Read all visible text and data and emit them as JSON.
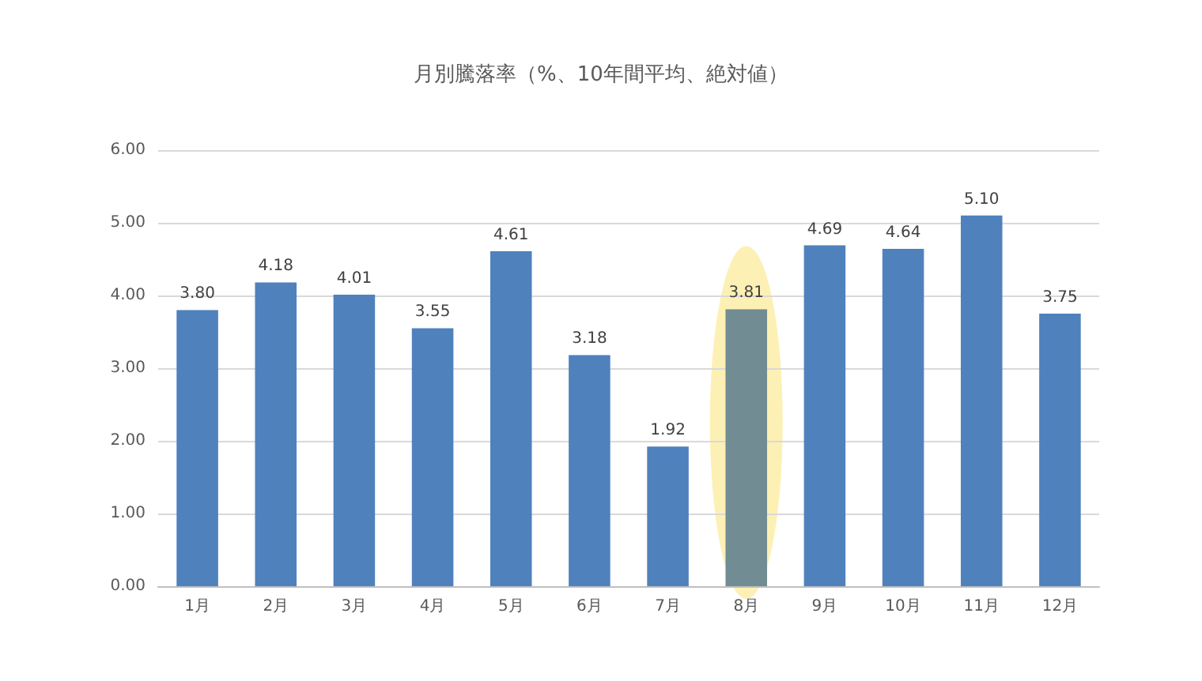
{
  "chart_data": {
    "type": "bar",
    "title": "月別騰落率（%、10年間平均、絶対値）",
    "categories": [
      "1月",
      "2月",
      "3月",
      "4月",
      "5月",
      "6月",
      "7月",
      "8月",
      "9月",
      "10月",
      "11月",
      "12月"
    ],
    "values": [
      3.8,
      4.18,
      4.01,
      3.55,
      4.61,
      3.18,
      1.92,
      3.81,
      4.69,
      4.64,
      5.1,
      3.75
    ],
    "value_labels": [
      "3.80",
      "4.18",
      "4.01",
      "3.55",
      "4.61",
      "3.18",
      "1.92",
      "3.81",
      "4.69",
      "4.64",
      "5.10",
      "3.75"
    ],
    "colors": [
      "#4f81bd",
      "#4f81bd",
      "#4f81bd",
      "#4f81bd",
      "#4f81bd",
      "#4f81bd",
      "#4f81bd",
      "#728c93",
      "#4f81bd",
      "#4f81bd",
      "#4f81bd",
      "#4f81bd"
    ],
    "ylim": [
      0,
      6
    ],
    "yticks": [
      {
        "value": 0,
        "label": "0.00"
      },
      {
        "value": 1,
        "label": "1.00"
      },
      {
        "value": 2,
        "label": "2.00"
      },
      {
        "value": 3,
        "label": "3.00"
      },
      {
        "value": 4,
        "label": "4.00"
      },
      {
        "value": 5,
        "label": "5.00"
      },
      {
        "value": 6,
        "label": "6.00"
      }
    ],
    "grid": "y"
  }
}
